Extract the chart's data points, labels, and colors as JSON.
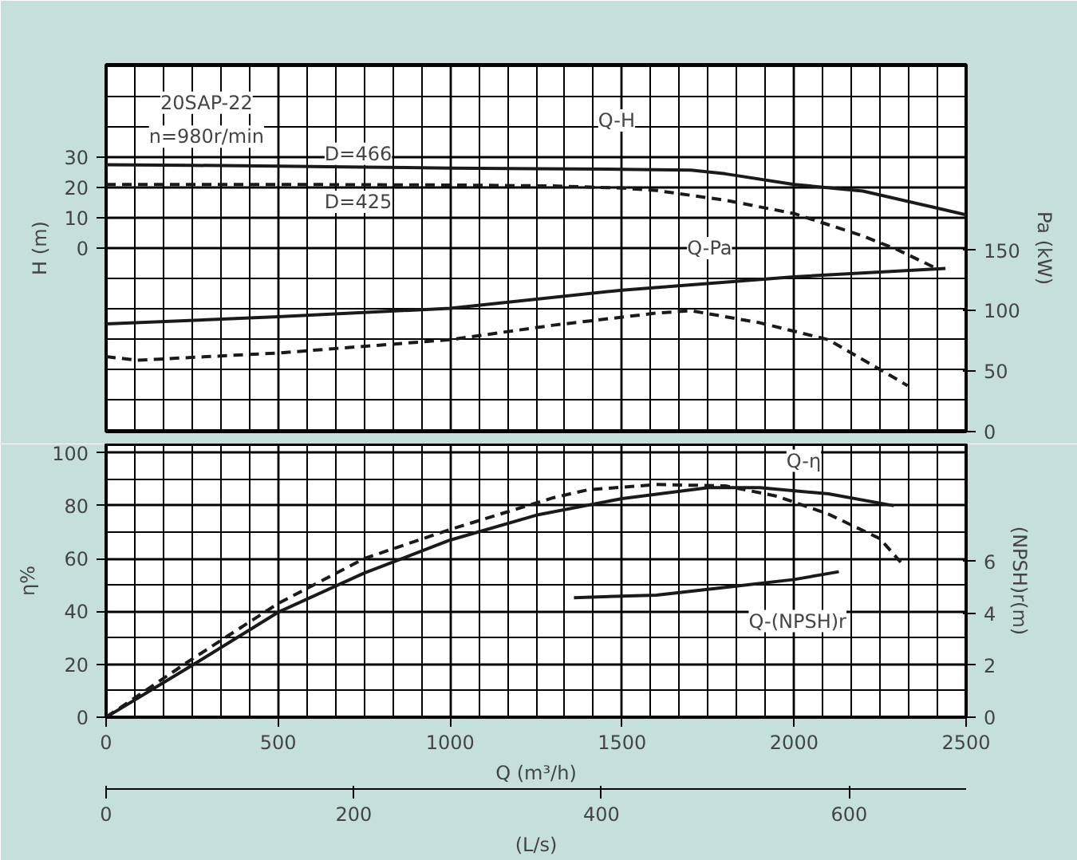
{
  "chart_data": [
    {
      "type": "line",
      "annotations": [
        "20SAP-22",
        "n=980r/min",
        "D=466",
        "D=425",
        "Q-H",
        "Q-Pa"
      ],
      "ylabel": "H (m)",
      "y2label": "Pa (kW)",
      "xlim": [
        0,
        2500
      ],
      "xticks": [
        0,
        500,
        1000,
        1500,
        2000,
        2500
      ],
      "tick_labels": "y",
      "ylim": [
        -60.5,
        60.5
      ],
      "yticks": [
        0,
        10,
        20,
        30
      ],
      "y2lim": [
        0,
        303.5
      ],
      "y2ticks": [
        0,
        50,
        100,
        150
      ],
      "grid": true,
      "series": [
        {
          "color": "#1a1a1a",
          "line_style": "solid",
          "x": [
            0,
            250,
            500,
            750,
            1000,
            1250,
            1500,
            1700,
            1800,
            2000,
            2200,
            2400,
            2500
          ],
          "values": [
            27.5,
            27.3,
            27.0,
            26.7,
            26.4,
            26.2,
            26.0,
            25.7,
            24.5,
            21,
            18.8,
            13.6,
            11
          ]
        },
        {
          "color": "#1a1a1a",
          "line_style": "dashed",
          "x": [
            0,
            500,
            1000,
            1300,
            1500,
            1600,
            1800,
            2000,
            2200,
            2300,
            2410
          ],
          "values": [
            21,
            21,
            20.8,
            20.5,
            19.8,
            19,
            15.8,
            11.4,
            4,
            -0.5,
            -6.5
          ]
        },
        {
          "axis": "y2",
          "color": "#1a1a1a",
          "line_style": "solid",
          "x": [
            0,
            500,
            1000,
            1500,
            2000,
            2440
          ],
          "values": [
            89,
            95,
            102,
            117,
            128,
            135
          ]
        },
        {
          "axis": "y2",
          "color": "#1a1a1a",
          "line_style": "dashed",
          "x": [
            0,
            90,
            500,
            1000,
            1300,
            1600,
            1700,
            1900,
            2100,
            2300,
            2330
          ],
          "values": [
            62,
            59,
            65,
            76,
            88,
            98,
            100,
            90,
            76,
            43,
            38
          ]
        }
      ]
    },
    {
      "type": "line",
      "annotations": [
        "Q-η",
        "Q-(NPSH)r"
      ],
      "xlabel": "Q (m³/h)",
      "x2label": "(L/s)",
      "ylabel": "η%",
      "y2label": "(NPSH)r(m)",
      "xlim": [
        0,
        2500
      ],
      "xticks": [
        0,
        500,
        1000,
        1500,
        2000,
        2500
      ],
      "x2lim": [
        0,
        694.4
      ],
      "x2ticks": [
        0,
        200,
        400,
        600
      ],
      "ylim": [
        0,
        103.2
      ],
      "yticks": [
        0,
        20,
        40,
        60,
        80,
        100
      ],
      "y2lim": [
        0,
        10.5
      ],
      "y2ticks": [
        0,
        2,
        4,
        6
      ],
      "grid": true,
      "series": [
        {
          "color": "#1a1a1a",
          "line_style": "solid",
          "x": [
            0,
            250,
            500,
            750,
            1000,
            1250,
            1500,
            1750,
            1900,
            2100,
            2290
          ],
          "values": [
            0,
            19.6,
            39.7,
            54.5,
            67,
            76.4,
            82.7,
            86.8,
            86.8,
            84.5,
            80
          ]
        },
        {
          "color": "#1a1a1a",
          "line_style": "dashed",
          "x": [
            0,
            250,
            500,
            750,
            1000,
            1300,
            1400,
            1600,
            1800,
            1950,
            2100,
            2250,
            2310
          ],
          "values": [
            0,
            22,
            43,
            60,
            71,
            83,
            86,
            88,
            87.5,
            83.6,
            76.8,
            67.5,
            58.6
          ]
        },
        {
          "axis": "y2",
          "color": "#1a1a1a",
          "line_style": "solid",
          "x": [
            1360,
            1600,
            1800,
            2000,
            2130
          ],
          "values": [
            4.6,
            4.7,
            5.0,
            5.3,
            5.6
          ]
        }
      ]
    }
  ]
}
